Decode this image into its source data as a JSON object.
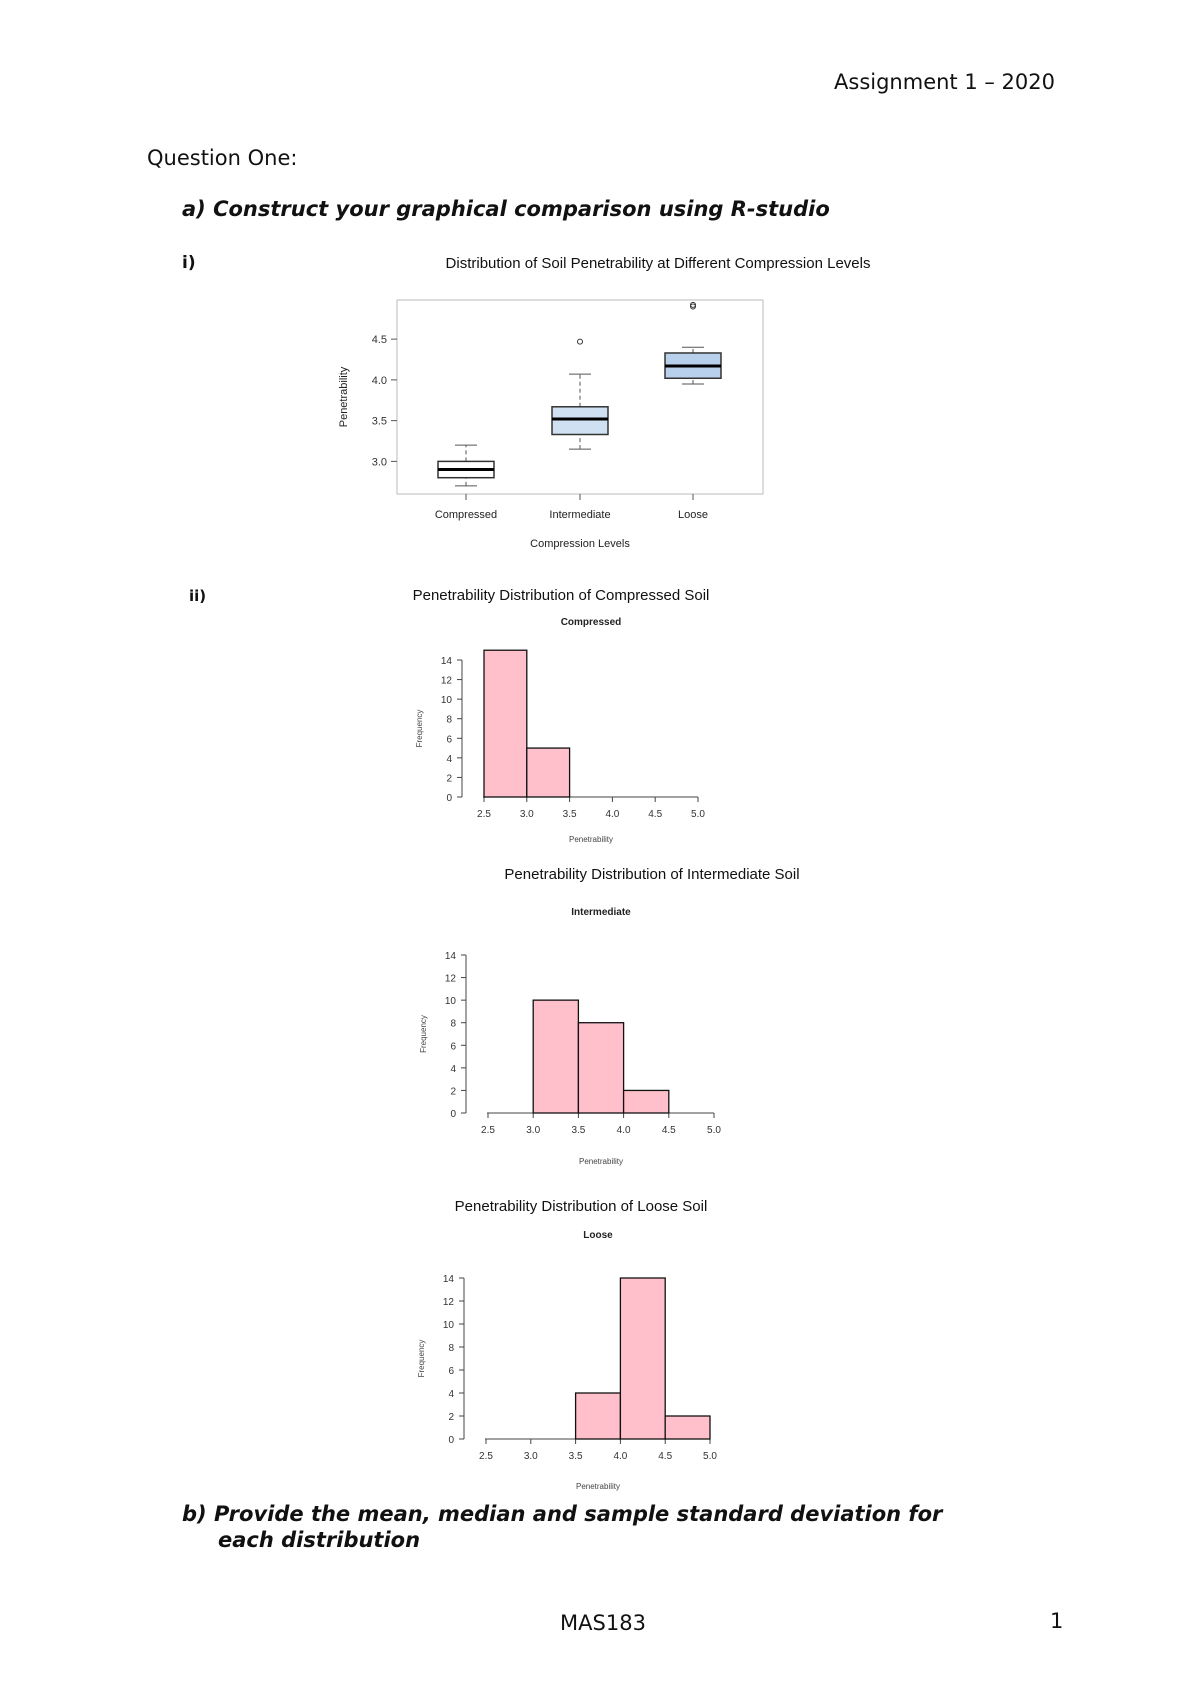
{
  "header": {
    "title": "Assignment 1 – 2020"
  },
  "question": {
    "heading": "Question One:",
    "part_a": "a) Construct your graphical comparison using R-studio",
    "part_i": "i)",
    "part_ii": "ii)",
    "part_b_line1": "b) Provide the mean, median and sample standard deviation for",
    "part_b_line2": "each distribution"
  },
  "footer": {
    "course": "MAS183",
    "page": "1"
  },
  "chart_titles": {
    "boxplot": "Distribution of Soil Penetrability at Different Compression Levels",
    "hist1": "Penetrability Distribution of Compressed Soil",
    "hist2": "Penetrability Distribution of Intermediate Soil",
    "hist3": "Penetrability Distribution of Loose Soil"
  },
  "chart_data": [
    {
      "type": "box",
      "xlabel": "Compression Levels",
      "ylabel": "Penetrability",
      "categories": [
        "Compressed",
        "Intermediate",
        "Loose"
      ],
      "yticks": [
        3.0,
        3.5,
        4.0,
        4.5
      ],
      "ylim": [
        2.6,
        4.98
      ],
      "series": [
        {
          "name": "Compressed",
          "whisker_low": 2.7,
          "q1": 2.8,
          "median": 2.9,
          "q3": 3.0,
          "whisker_high": 3.2,
          "outliers": [],
          "fill": "#ffffff"
        },
        {
          "name": "Intermediate",
          "whisker_low": 3.15,
          "q1": 3.33,
          "median": 3.52,
          "q3": 3.67,
          "whisker_high": 4.07,
          "outliers": [
            4.47
          ],
          "fill": "#cfe0f3"
        },
        {
          "name": "Loose",
          "whisker_low": 3.95,
          "q1": 4.02,
          "median": 4.17,
          "q3": 4.33,
          "whisker_high": 4.4,
          "outliers": [
            4.9,
            4.92
          ],
          "fill": "#b8d0ec"
        }
      ]
    },
    {
      "type": "bar",
      "title": "Compressed",
      "xlabel": "Penetrability",
      "ylabel": "Frequency",
      "bins": [
        [
          2.5,
          3.0
        ],
        [
          3.0,
          3.5
        ]
      ],
      "values": [
        15,
        5
      ],
      "xticks": [
        "2.5",
        "3.0",
        "3.5",
        "4.0",
        "4.5",
        "5.0"
      ],
      "yticks": [
        "0",
        "2",
        "4",
        "6",
        "8",
        "10",
        "12",
        "14"
      ],
      "ylim": [
        0,
        15
      ],
      "color": "#ffc0cb"
    },
    {
      "type": "bar",
      "title": "Intermediate",
      "xlabel": "Penetrability",
      "ylabel": "Frequency",
      "bins": [
        [
          3.0,
          3.5
        ],
        [
          3.5,
          4.0
        ],
        [
          4.0,
          4.5
        ]
      ],
      "values": [
        10,
        8,
        2
      ],
      "xticks": [
        "2.5",
        "3.0",
        "3.5",
        "4.0",
        "4.5",
        "5.0"
      ],
      "yticks": [
        "0",
        "2",
        "4",
        "6",
        "8",
        "10",
        "12",
        "14"
      ],
      "ylim": [
        0,
        14
      ],
      "color": "#ffc0cb"
    },
    {
      "type": "bar",
      "title": "Loose",
      "xlabel": "Penetrability",
      "ylabel": "Frequency",
      "bins": [
        [
          3.5,
          4.0
        ],
        [
          4.0,
          4.5
        ],
        [
          4.5,
          5.0
        ]
      ],
      "values": [
        4,
        14,
        2
      ],
      "xticks": [
        "2.5",
        "3.0",
        "3.5",
        "4.0",
        "4.5",
        "5.0"
      ],
      "yticks": [
        "0",
        "2",
        "4",
        "6",
        "8",
        "10",
        "12",
        "14"
      ],
      "ylim": [
        0,
        14
      ],
      "color": "#ffc0cb"
    }
  ]
}
